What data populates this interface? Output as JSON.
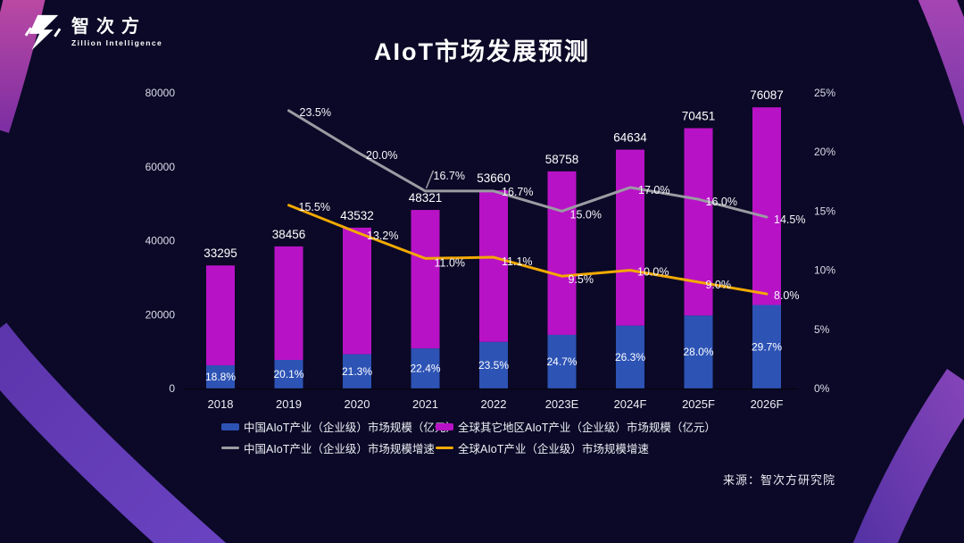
{
  "logo": {
    "name_cn": "智次方",
    "name_en": "Zillion Intelligence"
  },
  "title": "AIoT市场发展预测",
  "source": "来源：智次方研究院",
  "colors": {
    "background": "#0b0927",
    "bar_china_blue": "#2d53b5",
    "bar_global_magenta": "#b812c6",
    "line_china_gray": "#9b9ba3",
    "line_global_yellow": "#f2a900",
    "text": "#ffffff"
  },
  "chart_data": {
    "type": "stacked-bar+line",
    "title": "AIoT市场发展预测",
    "categories": [
      "2018",
      "2019",
      "2020",
      "2021",
      "2022",
      "2023E",
      "2024F",
      "2025F",
      "2026F"
    ],
    "bar_totals": [
      33295,
      38456,
      43532,
      48321,
      53660,
      58758,
      64634,
      70451,
      76087
    ],
    "china_share_pct": [
      18.8,
      20.1,
      21.3,
      22.4,
      23.5,
      24.7,
      26.3,
      28.0,
      29.7
    ],
    "series": [
      {
        "name": "中国AIoT产业（企业级）市场规模（亿元）",
        "type": "bar",
        "color": "#2d53b5"
      },
      {
        "name": "全球其它地区AIoT产业（企业级）市场规模（亿元）",
        "type": "bar",
        "color": "#b812c6"
      },
      {
        "name": "中国AIoT产业（企业级）市场规模增速",
        "type": "line",
        "color": "#9b9ba3",
        "values": [
          null,
          23.5,
          20.0,
          16.7,
          16.7,
          15.0,
          17.0,
          16.0,
          14.5
        ]
      },
      {
        "name": "全球AIoT产业（企业级）市场规模增速",
        "type": "line",
        "color": "#f2a900",
        "values": [
          null,
          15.5,
          13.2,
          11.0,
          11.1,
          9.5,
          10.0,
          9.0,
          8.0
        ]
      }
    ],
    "y_left": {
      "ticks": [
        "80000",
        "60000",
        "40000",
        "20000",
        "0"
      ],
      "max": 80000
    },
    "y_right": {
      "ticks": [
        "25%",
        "20%",
        "15%",
        "10%",
        "5%",
        "0%"
      ],
      "max": 25
    },
    "grid": false,
    "legend_position": "bottom"
  }
}
